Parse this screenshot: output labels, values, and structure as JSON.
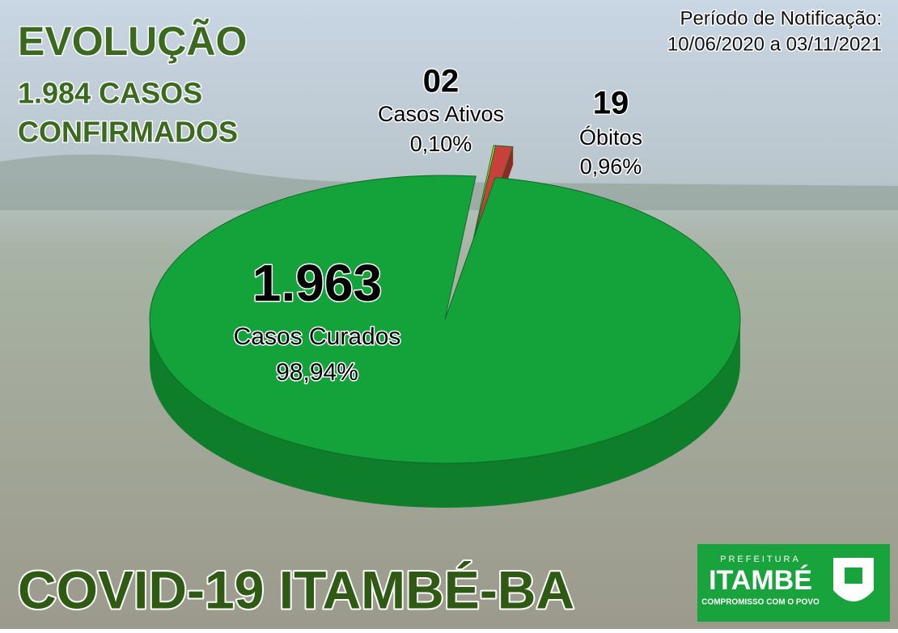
{
  "chart_data": {
    "type": "pie",
    "title": "EVOLUÇÃO",
    "subtitle": [
      "1.984 CASOS",
      "CONFIRMADOS"
    ],
    "period": [
      "Período de Notificação:",
      "10/06/2020 a 03/11/2021"
    ],
    "categories": [
      "Casos Curados",
      "Casos Ativos",
      "Óbitos"
    ],
    "values": [
      1963,
      2,
      19
    ],
    "value_labels": [
      "1.963",
      "02",
      "19"
    ],
    "percent_labels": [
      "98,94%",
      "0,10%",
      "0,96%"
    ],
    "colors": [
      "#14a33a",
      "#f2ea1c",
      "#c8403a"
    ],
    "footer": "COVID-19  ITAMBÉ-BA"
  },
  "logo": {
    "top": "PREFEITURA",
    "name": "ITAMBÉ",
    "motto": "COMPROMISSO COM O POVO"
  }
}
